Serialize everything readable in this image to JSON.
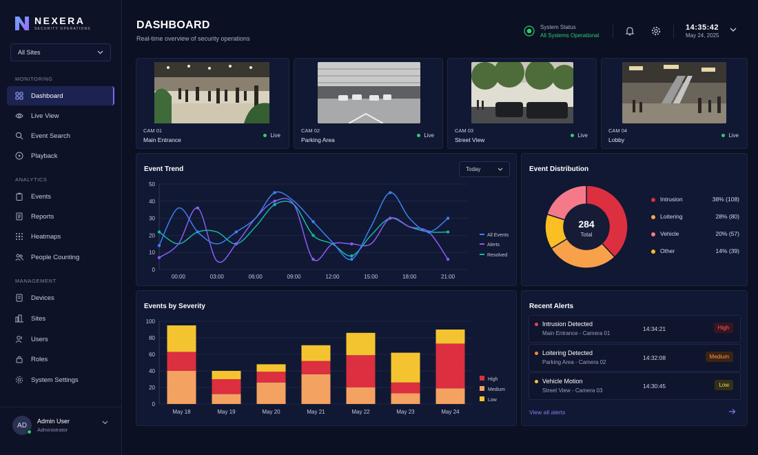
{
  "brand": {
    "name": "NEXERA",
    "subtitle": "SECURITY OPERATIONS"
  },
  "sidebar": {
    "site_select": "All Sites",
    "sections": {
      "monitoring": "MONITORING",
      "analytics": "ANALYTICS",
      "management": "MANAGEMENT"
    },
    "items": [
      {
        "label": "Dashboard",
        "icon": "dashboard-icon",
        "active": true
      },
      {
        "label": "Live View",
        "icon": "eye-icon"
      },
      {
        "label": "Event Search",
        "icon": "search-icon"
      },
      {
        "label": "Playback",
        "icon": "play-circle-icon"
      },
      {
        "label": "Events",
        "icon": "clipboard-icon"
      },
      {
        "label": "Reports",
        "icon": "report-icon"
      },
      {
        "label": "Heatmaps",
        "icon": "heatmap-icon"
      },
      {
        "label": "People Counting",
        "icon": "people-icon"
      },
      {
        "label": "Devices",
        "icon": "device-icon"
      },
      {
        "label": "Sites",
        "icon": "sites-icon"
      },
      {
        "label": "Users",
        "icon": "users-icon"
      },
      {
        "label": "Roles",
        "icon": "lock-icon"
      },
      {
        "label": "System Settings",
        "icon": "gear-icon"
      }
    ],
    "user": {
      "initials": "AD",
      "name": "Admin User",
      "role": "Administrator"
    }
  },
  "header": {
    "title": "DASHBOARD",
    "subtitle": "Real-time overview of security operations",
    "status_label": "System Status",
    "status_value": "All Systems Operational",
    "time": "14:35:42",
    "date": "May 24, 2025"
  },
  "cameras": [
    {
      "id": "CAM 01",
      "name": "Main Entrance",
      "status": "Live",
      "scene": "lobby-crowd"
    },
    {
      "id": "CAM 02",
      "name": "Parking Area",
      "status": "Live",
      "scene": "parking-garage"
    },
    {
      "id": "CAM 03",
      "name": "Street View",
      "status": "Live",
      "scene": "street-trees"
    },
    {
      "id": "CAM 04",
      "name": "Lobby",
      "status": "Live",
      "scene": "mall-escalator"
    }
  ],
  "event_trend": {
    "title": "Event Trend",
    "range_select": "Today",
    "chart_data": {
      "type": "line",
      "x_ticks": [
        "00:00",
        "03:00",
        "06:00",
        "09:00",
        "12:00",
        "15:00",
        "18:00",
        "21:00"
      ],
      "ylim": [
        0,
        50
      ],
      "y_ticks": [
        0,
        10,
        20,
        30,
        40,
        50
      ],
      "x": [
        0,
        1.5,
        3,
        4.5,
        6,
        7.5,
        9,
        10.5,
        12,
        13.5,
        15,
        16.5,
        18,
        19.5,
        21,
        22.5
      ],
      "series": [
        {
          "name": "All Events",
          "color": "#3b82f6",
          "values": [
            14,
            36,
            22,
            15,
            22,
            30,
            45,
            40,
            28,
            16,
            6,
            25,
            45,
            30,
            22,
            30
          ]
        },
        {
          "name": "Alerts",
          "color": "#8b5cf6",
          "values": [
            7,
            15,
            36,
            5,
            15,
            30,
            40,
            38,
            6,
            15,
            15,
            15,
            30,
            25,
            22,
            6
          ]
        },
        {
          "name": "Resolved",
          "color": "#14b8a6",
          "values": [
            22,
            15,
            22,
            22,
            15,
            25,
            38,
            38,
            20,
            15,
            8,
            20,
            30,
            25,
            22,
            22
          ]
        }
      ]
    }
  },
  "event_distribution": {
    "title": "Event Distribution",
    "total_value": "284",
    "total_label": "Total",
    "chart_data": {
      "type": "pie",
      "slices": [
        {
          "label": "Intrusion",
          "value": 108,
          "text": "38% (108)",
          "color": "#dc2f3f"
        },
        {
          "label": "Loitering",
          "value": 80,
          "text": "28% (80)",
          "color": "#f8a14a"
        },
        {
          "label": "Vehicle",
          "value": 57,
          "text": "20% (57)",
          "color": "#f47a8a"
        },
        {
          "label": "Other",
          "value": 39,
          "text": "14% (39)",
          "color": "#fbbf24"
        }
      ]
    }
  },
  "severity": {
    "title": "Events by Severity",
    "chart_data": {
      "type": "bar",
      "categories": [
        "May 18",
        "May 19",
        "May 20",
        "May 21",
        "May 22",
        "May 23",
        "May 24"
      ],
      "ylim": [
        0,
        100
      ],
      "y_ticks": [
        0,
        20,
        40,
        60,
        80,
        100
      ],
      "series": [
        {
          "name": "High",
          "color": "#dc2f3f",
          "values": [
            23,
            18,
            13,
            16,
            39,
            13,
            54
          ]
        },
        {
          "name": "Medium",
          "color": "#f4a261",
          "values": [
            40,
            12,
            26,
            36,
            20,
            13,
            19
          ]
        },
        {
          "name": "Low",
          "color": "#f4c430",
          "values": [
            32,
            10,
            9,
            19,
            27,
            36,
            17
          ]
        }
      ],
      "legend_order": [
        "High",
        "Medium",
        "Low"
      ]
    }
  },
  "recent_alerts": {
    "title": "Recent Alerts",
    "items": [
      {
        "title": "Intrusion Detected",
        "location": "Main Entrance - Camera 01",
        "time": "14:34:21",
        "severity": "High",
        "dot": "#e5484d",
        "badge_bg": "#3a1420",
        "badge_fg": "#f0606b"
      },
      {
        "title": "Loitering Detected",
        "location": "Parking Area - Camera 02",
        "time": "14:32:08",
        "severity": "Medium",
        "dot": "#f08a3a",
        "badge_bg": "#3b2314",
        "badge_fg": "#f59a50"
      },
      {
        "title": "Vehicle Motion",
        "location": "Street View - Camera 03",
        "time": "14:30:45",
        "severity": "Low",
        "dot": "#f5c542",
        "badge_bg": "#33301a",
        "badge_fg": "#f2d36b"
      }
    ],
    "view_all": "View all alerts"
  }
}
